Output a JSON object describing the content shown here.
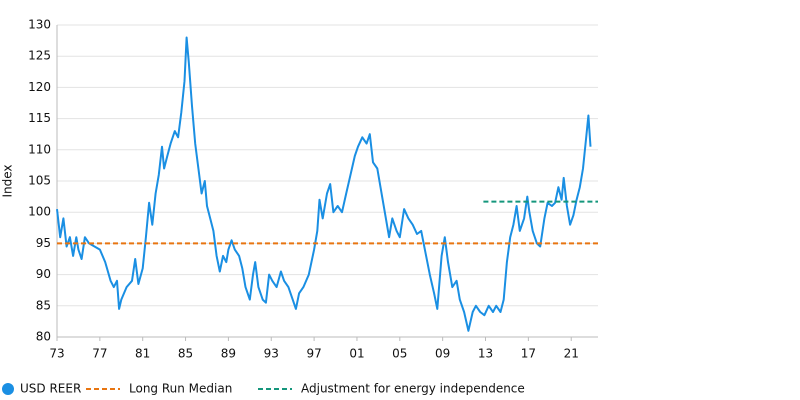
{
  "chart_data": {
    "type": "line",
    "y_label": "Index",
    "xlim": [
      1973,
      2023.5
    ],
    "xticks": [
      {
        "value": 1973,
        "label": "73"
      },
      {
        "value": 1977,
        "label": "77"
      },
      {
        "value": 1981,
        "label": "81"
      },
      {
        "value": 1985,
        "label": "85"
      },
      {
        "value": 1989,
        "label": "89"
      },
      {
        "value": 1993,
        "label": "93"
      },
      {
        "value": 1997,
        "label": "97"
      },
      {
        "value": 2001,
        "label": "01"
      },
      {
        "value": 2005,
        "label": "05"
      },
      {
        "value": 2009,
        "label": "09"
      },
      {
        "value": 2013,
        "label": "13"
      },
      {
        "value": 2017,
        "label": "17"
      },
      {
        "value": 2021,
        "label": "21"
      }
    ],
    "ylim": [
      80,
      130
    ],
    "yticks": [
      80,
      85,
      90,
      95,
      100,
      105,
      110,
      115,
      120,
      125,
      130
    ],
    "grid": true,
    "legend": "bottom-left",
    "series": [
      {
        "name": "USD REER",
        "color": "#1a8fe3",
        "style": "solid",
        "x": [
          1973.0,
          1973.3,
          1973.6,
          1973.9,
          1974.2,
          1974.5,
          1974.8,
          1975.0,
          1975.3,
          1975.6,
          1976.0,
          1976.5,
          1977.0,
          1977.5,
          1978.0,
          1978.3,
          1978.6,
          1978.8,
          1979.0,
          1979.5,
          1980.0,
          1980.3,
          1980.6,
          1981.0,
          1981.3,
          1981.6,
          1981.9,
          1982.2,
          1982.5,
          1982.8,
          1983.0,
          1983.3,
          1983.6,
          1984.0,
          1984.3,
          1984.6,
          1984.9,
          1985.1,
          1985.3,
          1985.6,
          1985.9,
          1986.2,
          1986.5,
          1986.8,
          1987.0,
          1987.3,
          1987.6,
          1987.9,
          1988.2,
          1988.5,
          1988.8,
          1989.0,
          1989.3,
          1989.6,
          1990.0,
          1990.3,
          1990.6,
          1991.0,
          1991.3,
          1991.5,
          1991.8,
          1992.2,
          1992.5,
          1992.8,
          1993.1,
          1993.5,
          1993.9,
          1994.2,
          1994.6,
          1995.0,
          1995.3,
          1995.6,
          1996.0,
          1996.5,
          1997.0,
          1997.3,
          1997.5,
          1997.8,
          1998.2,
          1998.5,
          1998.8,
          1999.2,
          1999.6,
          2000.0,
          2000.4,
          2000.8,
          2001.1,
          2001.5,
          2001.9,
          2002.2,
          2002.5,
          2002.9,
          2003.2,
          2003.6,
          2004.0,
          2004.3,
          2004.7,
          2005.0,
          2005.4,
          2005.8,
          2006.2,
          2006.6,
          2007.0,
          2007.4,
          2007.8,
          2008.2,
          2008.5,
          2008.9,
          2009.2,
          2009.5,
          2009.9,
          2010.3,
          2010.6,
          2011.0,
          2011.4,
          2011.8,
          2012.1,
          2012.5,
          2012.9,
          2013.3,
          2013.7,
          2014.0,
          2014.4,
          2014.7,
          2015.0,
          2015.3,
          2015.6,
          2015.9,
          2016.2,
          2016.6,
          2016.9,
          2017.1,
          2017.4,
          2017.8,
          2018.1,
          2018.5,
          2018.8,
          2019.2,
          2019.5,
          2019.8,
          2020.1,
          2020.3,
          2020.6,
          2020.9,
          2021.2,
          2021.5,
          2021.8,
          2022.1,
          2022.4,
          2022.6,
          2022.8
        ],
        "values": [
          100.5,
          96,
          99,
          94.5,
          96,
          93,
          96,
          94,
          92.5,
          96,
          95,
          94.5,
          94,
          92,
          89,
          88,
          89,
          84.5,
          86,
          88,
          89,
          92.5,
          88.5,
          91,
          96,
          101.5,
          98,
          103,
          106,
          110.5,
          107,
          109,
          111,
          113,
          112,
          116,
          121,
          128,
          124,
          117,
          111,
          107,
          103,
          105,
          101,
          99,
          97,
          93,
          90.5,
          93,
          92,
          94,
          95.5,
          94,
          93,
          91,
          88,
          86,
          90,
          92,
          88,
          86,
          85.5,
          90,
          89,
          88,
          90.5,
          89,
          88,
          86,
          84.5,
          87,
          88,
          90,
          94,
          97,
          102,
          99,
          103,
          104.5,
          100,
          101,
          100,
          103,
          106,
          109,
          110.5,
          112,
          111,
          112.5,
          108,
          107,
          104,
          100,
          96,
          99,
          97,
          96,
          100.5,
          99,
          98,
          96.5,
          97,
          93.5,
          90,
          87,
          84.5,
          93,
          96,
          92,
          88,
          89,
          86,
          84,
          81,
          84,
          85,
          84,
          83.5,
          85,
          84,
          85,
          84,
          86,
          92,
          96,
          98,
          101,
          97,
          99,
          102.5,
          100,
          97,
          95,
          94.5,
          99,
          101.5,
          101,
          101.5,
          104,
          102,
          105.5,
          101,
          98,
          99.5,
          102,
          104,
          107,
          112,
          115.5,
          110.5
        ]
      },
      {
        "name": "Long Run Median",
        "color": "#e87511",
        "style": "dashed",
        "x": [
          1973,
          2023.5
        ],
        "values": [
          95,
          95
        ]
      },
      {
        "name": "Adjustment for energy independence",
        "color": "#15967c",
        "style": "dashed",
        "x": [
          2012.8,
          2023.5
        ],
        "values": [
          101.7,
          101.7
        ]
      }
    ]
  }
}
